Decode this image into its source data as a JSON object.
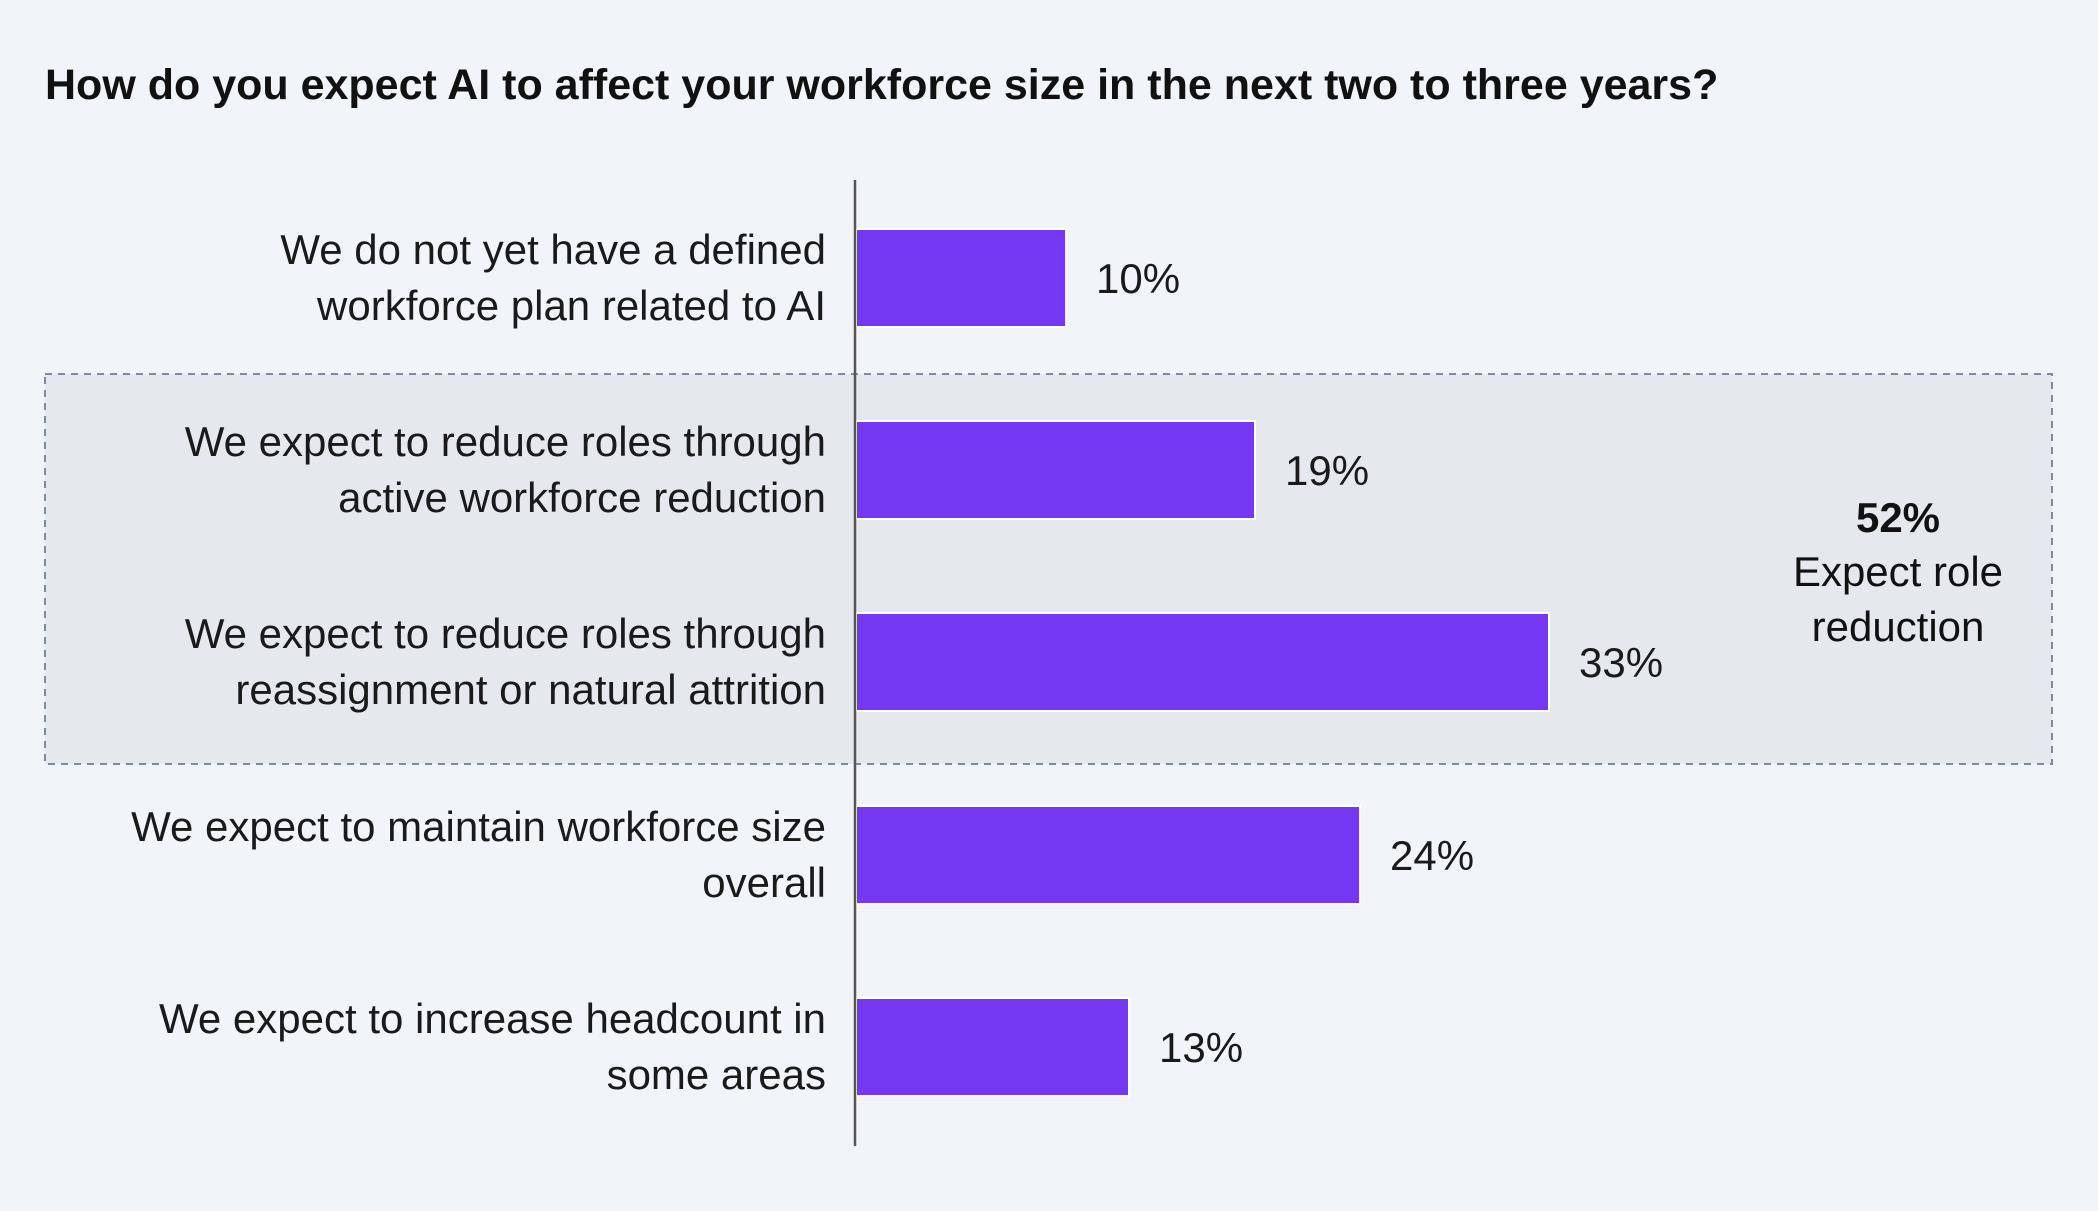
{
  "chart_data": {
    "type": "bar",
    "orientation": "horizontal",
    "title": "How do you expect AI to affect your workforce size in the next two to three years?",
    "categories": [
      [
        "We do not yet have a defined",
        "workforce plan related to AI"
      ],
      [
        "We expect to reduce roles through",
        "active workforce reduction"
      ],
      [
        "We expect to reduce roles through",
        "reassignment or natural attrition"
      ],
      [
        "We expect to maintain workforce size",
        "overall"
      ],
      [
        "We expect to increase headcount in",
        "some areas"
      ]
    ],
    "values": [
      10,
      19,
      33,
      24,
      13
    ],
    "value_labels": [
      "10%",
      "19%",
      "33%",
      "24%",
      "13%"
    ],
    "unit": "%",
    "xlim": [
      0,
      60
    ],
    "bar_color": "#7538f2",
    "grid": false,
    "callout": {
      "value": "52%",
      "text": [
        "Expect role",
        "reduction"
      ],
      "spans_categories": [
        1,
        2
      ],
      "box_fill": "#e5e8ed",
      "box_border": "#7c8ba3"
    }
  }
}
